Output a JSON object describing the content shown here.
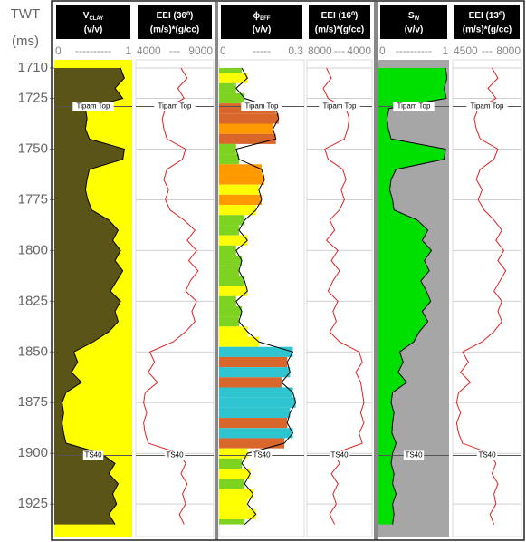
{
  "chart_data": {
    "type": "well-log",
    "y_label": [
      "TWT",
      "(ms)"
    ],
    "ylim": [
      1706,
      1941
    ],
    "yticks": [
      1710,
      1725,
      1750,
      1775,
      1800,
      1825,
      1850,
      1875,
      1900,
      1925
    ],
    "grid": true,
    "markers": [
      {
        "name": "Tipam Top",
        "value": 1729
      },
      {
        "name": "TS40",
        "value": 1901
      }
    ],
    "depth": [
      1710,
      1715,
      1720,
      1725,
      1730,
      1735,
      1740,
      1745,
      1750,
      1755,
      1760,
      1765,
      1770,
      1775,
      1780,
      1785,
      1790,
      1795,
      1800,
      1805,
      1810,
      1815,
      1820,
      1825,
      1830,
      1835,
      1840,
      1845,
      1850,
      1855,
      1860,
      1865,
      1870,
      1875,
      1880,
      1885,
      1890,
      1895,
      1900,
      1905,
      1910,
      1915,
      1920,
      1925,
      1930,
      1935
    ],
    "tracks": [
      {
        "title": "V",
        "title_sub": "CLAY",
        "unit": "(v/v)",
        "xlim": [
          0,
          1
        ],
        "xticks": [
          0,
          1
        ],
        "scale_sep": "----------",
        "color": "#000000",
        "fill": "#5b5417",
        "background": "#ffff00",
        "values": [
          0.85,
          0.9,
          0.78,
          0.88,
          0.4,
          0.42,
          0.4,
          0.45,
          0.9,
          0.88,
          0.45,
          0.42,
          0.4,
          0.43,
          0.48,
          0.7,
          0.82,
          0.75,
          0.85,
          0.78,
          0.88,
          0.8,
          0.72,
          0.85,
          0.78,
          0.82,
          0.7,
          0.5,
          0.25,
          0.3,
          0.22,
          0.35,
          0.15,
          0.1,
          0.12,
          0.1,
          0.12,
          0.15,
          0.6,
          0.78,
          0.7,
          0.82,
          0.75,
          0.8,
          0.7,
          0.78
        ]
      },
      {
        "title": "EEI (36⁰)",
        "unit": "(m/s)*(g/cc)",
        "xlim": [
          4000,
          9000
        ],
        "xticks": [
          4000,
          9000
        ],
        "scale_sep": "---",
        "color": "#e02020",
        "values": [
          6900,
          7300,
          6700,
          7100,
          5900,
          5700,
          5800,
          6000,
          7200,
          7000,
          6000,
          5800,
          6100,
          5900,
          6200,
          7100,
          7800,
          7300,
          7900,
          7400,
          8000,
          7500,
          7200,
          7900,
          7600,
          7800,
          7200,
          6400,
          4900,
          5200,
          4800,
          5400,
          4600,
          4500,
          4700,
          4500,
          4600,
          4800,
          6800,
          7200,
          6900,
          7300,
          7000,
          7200,
          6800,
          7100
        ]
      },
      {
        "title": "ϕ",
        "title_sub": "EFF",
        "unit": "(v/v)",
        "xlim": [
          0,
          0.3
        ],
        "xticks": [
          0,
          0.3
        ],
        "scale_sep": "-----",
        "color": "#000000",
        "fill_colors": [
          "#1fa81f",
          "#7ed321",
          "#ffff00",
          "#ff9900",
          "#d9662a",
          "#2ec4d0"
        ],
        "values": [
          0.08,
          0.1,
          0.06,
          0.09,
          0.2,
          0.21,
          0.19,
          0.2,
          0.06,
          0.07,
          0.15,
          0.16,
          0.14,
          0.15,
          0.13,
          0.09,
          0.07,
          0.1,
          0.06,
          0.08,
          0.07,
          0.09,
          0.1,
          0.06,
          0.08,
          0.07,
          0.1,
          0.14,
          0.26,
          0.24,
          0.25,
          0.22,
          0.26,
          0.27,
          0.25,
          0.24,
          0.26,
          0.23,
          0.1,
          0.08,
          0.11,
          0.09,
          0.12,
          0.1,
          0.13,
          0.09
        ]
      },
      {
        "title": "EEI (16⁰)",
        "unit": "(m/s)*(g/cc)",
        "xlim": [
          8000,
          4000
        ],
        "xticks": [
          8000,
          4000
        ],
        "scale_sep": "---",
        "color": "#e02020",
        "values": [
          6800,
          6500,
          7000,
          6700,
          5600,
          5400,
          5500,
          5700,
          6900,
          6700,
          5800,
          5600,
          5900,
          5700,
          6000,
          6600,
          6300,
          6800,
          6100,
          6500,
          6000,
          6400,
          6700,
          6100,
          6400,
          6200,
          6600,
          6000,
          4800,
          4600,
          5000,
          4700,
          4600,
          4500,
          4700,
          4500,
          4800,
          4600,
          6300,
          6000,
          6500,
          6100,
          6400,
          6200,
          6600,
          6300
        ]
      },
      {
        "title": "S",
        "title_sub": "W",
        "unit": "(v/v)",
        "xlim": [
          0,
          1
        ],
        "xticks": [
          0,
          1
        ],
        "scale_sep": "----------",
        "color": "#000000",
        "fill": "#00e000",
        "background": "#a6a6a6",
        "values": [
          0.95,
          0.97,
          0.93,
          0.96,
          0.15,
          0.12,
          0.14,
          0.18,
          0.95,
          0.93,
          0.25,
          0.18,
          0.16,
          0.2,
          0.22,
          0.55,
          0.7,
          0.62,
          0.75,
          0.65,
          0.72,
          0.6,
          0.68,
          0.74,
          0.62,
          0.7,
          0.58,
          0.5,
          0.3,
          0.35,
          0.28,
          0.4,
          0.2,
          0.18,
          0.22,
          0.2,
          0.19,
          0.25,
          0.2,
          0.18,
          0.22,
          0.2,
          0.25,
          0.2,
          0.22,
          0.2
        ]
      },
      {
        "title": "EEI (13⁰)",
        "unit": "(m/s)*(g/cc)",
        "xlim": [
          4500,
          8000
        ],
        "xticks": [
          4500,
          8000
        ],
        "scale_sep": "---",
        "color": "#e02020",
        "values": [
          6500,
          6800,
          6300,
          6700,
          5800,
          5600,
          5700,
          5900,
          6800,
          6600,
          5900,
          5700,
          6000,
          5800,
          6100,
          6600,
          7000,
          6700,
          7100,
          6800,
          7200,
          6900,
          6600,
          7000,
          6800,
          7000,
          6600,
          6000,
          5000,
          5300,
          4900,
          5400,
          4800,
          4700,
          4900,
          4700,
          4800,
          5000,
          6400,
          6700,
          6500,
          6800,
          6600,
          6700,
          6400,
          6600
        ]
      }
    ]
  }
}
